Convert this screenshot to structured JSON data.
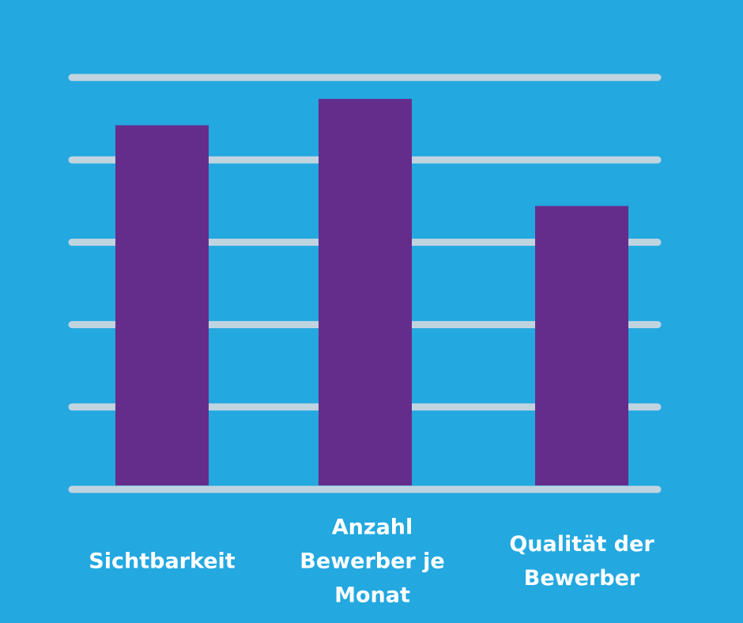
{
  "chart_data": {
    "type": "bar",
    "categories": [
      "Sichtbarkeit",
      "Anzahl\nBewerber je\nMonat",
      "Qualität der\nBewerber"
    ],
    "values": [
      4.42,
      4.74,
      3.44
    ],
    "ylim": [
      0,
      5
    ],
    "grid": true,
    "gridlines": [
      0,
      1,
      2,
      3,
      4,
      5
    ],
    "colors": {
      "background": "#23a8e0",
      "bar": "#652d8b",
      "grid": "#c0d4e0",
      "label": "#ffffff"
    }
  }
}
